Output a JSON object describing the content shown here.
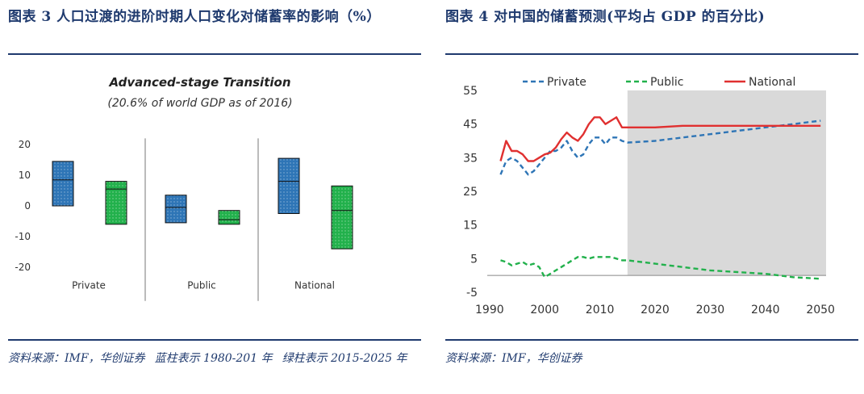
{
  "left": {
    "figure_title": "图表 3 人口过渡的进阶时期人口变化对储蓄率的影响（%）",
    "source_lines": [
      "资料来源：IMF，华创证券",
      "蓝柱表示 1980-201 年",
      "绿柱表示 2015-2025 年"
    ]
  },
  "right": {
    "figure_title": "图表 4 对中国的储蓄预测(平均占 GDP 的百分比)",
    "source_lines": [
      "资料来源：IMF，华创证券"
    ]
  },
  "chart_data": [
    {
      "type": "bar",
      "title": "Advanced-stage Transition",
      "subtitle": "(20.6% of world GDP as of 2016)",
      "categories": [
        "Private",
        "Public",
        "National"
      ],
      "yticks": [
        20,
        10,
        0,
        -10,
        -20
      ],
      "ylim": [
        -22,
        22
      ],
      "grid": false,
      "series": [
        {
          "name": "蓝柱表示 1980-201 年",
          "color": "#2e75b6",
          "boxes": [
            {
              "category": "Private",
              "low": 0,
              "mid": 8.5,
              "high": 14.5
            },
            {
              "category": "Public",
              "low": -5.5,
              "mid": -0.5,
              "high": 3.5
            },
            {
              "category": "National",
              "low": -2.5,
              "mid": 8,
              "high": 15.5
            }
          ]
        },
        {
          "name": "绿柱表示 2015-2025 年",
          "color": "#22b14c",
          "boxes": [
            {
              "category": "Private",
              "low": -6,
              "mid": 5.5,
              "high": 8
            },
            {
              "category": "Public",
              "low": -6,
              "mid": -4.5,
              "high": -1.5
            },
            {
              "category": "National",
              "low": -14,
              "mid": -1.5,
              "high": 6.5
            }
          ]
        }
      ]
    },
    {
      "type": "line",
      "xlabel": "",
      "ylabel": "",
      "xlim": [
        1989,
        2051
      ],
      "ylim": [
        -5,
        55
      ],
      "xticks": [
        1990,
        2000,
        2010,
        2020,
        2030,
        2040,
        2050
      ],
      "yticks": [
        55,
        45,
        35,
        25,
        15,
        5,
        -5
      ],
      "projection_start": 2015,
      "projection_color": "#d9d9d9",
      "legend_position": "top",
      "series": [
        {
          "name": "Private",
          "color": "#2e75b6",
          "style": "dashed",
          "x": [
            1992,
            1993,
            1994,
            1995,
            1996,
            1997,
            1998,
            1999,
            2000,
            2001,
            2002,
            2003,
            2004,
            2005,
            2006,
            2007,
            2008,
            2009,
            2010,
            2011,
            2012,
            2013,
            2014,
            2015,
            2020,
            2025,
            2030,
            2035,
            2040,
            2045,
            2050
          ],
          "y": [
            30,
            34,
            35,
            34,
            32,
            30,
            31,
            33,
            35,
            37,
            37,
            38,
            40,
            37,
            35,
            36,
            39,
            41,
            41,
            39,
            41,
            41,
            40,
            39.5,
            40,
            41,
            42,
            43,
            44,
            45,
            46
          ]
        },
        {
          "name": "Public",
          "color": "#22b14c",
          "style": "dashed",
          "x": [
            1992,
            1993,
            1994,
            1995,
            1996,
            1997,
            1998,
            1999,
            2000,
            2001,
            2002,
            2003,
            2004,
            2005,
            2006,
            2007,
            2008,
            2009,
            2010,
            2011,
            2012,
            2013,
            2014,
            2015,
            2020,
            2025,
            2030,
            2035,
            2040,
            2045,
            2050
          ],
          "y": [
            4.5,
            4,
            3,
            3.5,
            4,
            3,
            3.5,
            2.5,
            -0.5,
            0.5,
            1.5,
            2.5,
            3.5,
            4.5,
            5.5,
            5.5,
            5,
            5.5,
            5.5,
            5.5,
            5.5,
            5,
            4.5,
            4.5,
            3.5,
            2.5,
            1.5,
            1,
            0.5,
            -0.5,
            -1
          ]
        },
        {
          "name": "National",
          "color": "#e03030",
          "style": "solid",
          "x": [
            1992,
            1993,
            1994,
            1995,
            1996,
            1997,
            1998,
            1999,
            2000,
            2001,
            2002,
            2003,
            2004,
            2005,
            2006,
            2007,
            2008,
            2009,
            2010,
            2011,
            2012,
            2013,
            2014,
            2015,
            2020,
            2025,
            2030,
            2035,
            2040,
            2045,
            2050
          ],
          "y": [
            34,
            40,
            37,
            37,
            36,
            34,
            34,
            35,
            36,
            36.5,
            38,
            40.5,
            42.5,
            41,
            40,
            42,
            45,
            47,
            47,
            45,
            46,
            47,
            44,
            44,
            44,
            44.5,
            44.5,
            44.5,
            44.5,
            44.5,
            44.5
          ]
        }
      ]
    }
  ]
}
